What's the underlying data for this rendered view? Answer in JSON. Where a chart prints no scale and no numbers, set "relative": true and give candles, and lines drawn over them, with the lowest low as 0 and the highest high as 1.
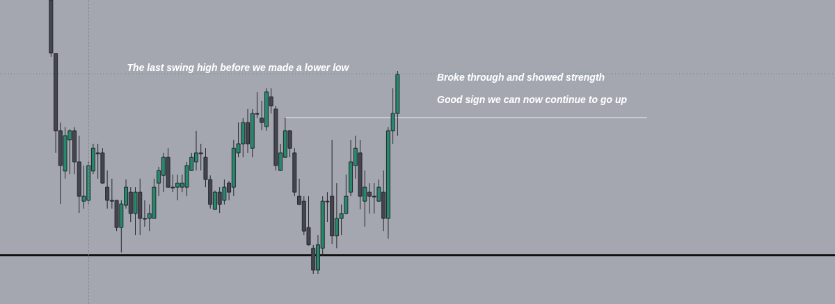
{
  "chart_data": {
    "type": "candlestick",
    "relative": true,
    "categories": [
      null,
      null,
      null,
      null,
      null,
      null,
      null,
      null,
      null,
      null,
      null,
      null,
      null,
      null,
      null,
      null,
      null,
      null,
      null,
      null,
      null,
      null,
      null,
      null,
      null,
      null,
      null,
      null,
      null,
      null,
      null,
      null,
      null,
      null,
      null,
      null,
      null,
      null,
      null,
      null,
      null,
      null,
      null,
      null,
      null,
      null,
      null,
      null,
      null,
      null,
      null,
      null,
      null,
      null,
      null,
      null,
      null,
      null,
      null,
      null,
      null,
      null,
      null,
      null,
      null,
      null,
      null,
      null,
      null,
      null,
      null,
      null,
      null,
      null,
      null
    ],
    "ohlc": [
      [
        1,
        1,
        0.792,
        0.807
      ],
      [
        0.805,
        0.805,
        0.442,
        0.523
      ],
      [
        0.523,
        0.553,
        0.256,
        0.396
      ],
      [
        0.376,
        0.536,
        0.348,
        0.505
      ],
      [
        0.49,
        0.528,
        0.365,
        0.523
      ],
      [
        0.523,
        0.536,
        0.365,
        0.409
      ],
      [
        0.409,
        0.505,
        0.223,
        0.284
      ],
      [
        0.266,
        0.396,
        0.239,
        0.284
      ],
      [
        0.269,
        0.409,
        0.256,
        0.396
      ],
      [
        0.376,
        0.475,
        0.365,
        0.459
      ],
      [
        0.442,
        0.475,
        0.348,
        0.439
      ],
      [
        0.442,
        0.459,
        0.33,
        0.332
      ],
      [
        0.317,
        0.378,
        0.239,
        0.269
      ],
      [
        0.269,
        0.348,
        0.239,
        0.266
      ],
      [
        0.269,
        0.269,
        0.157,
        0.17
      ],
      [
        0.17,
        0.269,
        0.079,
        0.256
      ],
      [
        0.251,
        0.345,
        0.239,
        0.317
      ],
      [
        0.299,
        0.317,
        0.19,
        0.221
      ],
      [
        0.221,
        0.317,
        0.142,
        0.299
      ],
      [
        0.299,
        0.348,
        0.142,
        0.203
      ],
      [
        0.203,
        0.269,
        0.173,
        0.201
      ],
      [
        0.203,
        0.254,
        0.157,
        0.221
      ],
      [
        0.203,
        0.348,
        0.203,
        0.317
      ],
      [
        0.332,
        0.391,
        0.284,
        0.378
      ],
      [
        0.36,
        0.442,
        0.299,
        0.426
      ],
      [
        0.426,
        0.459,
        0.315,
        0.317
      ],
      [
        0.317,
        0.363,
        0.299,
        0.315
      ],
      [
        0.317,
        0.363,
        0.269,
        0.332
      ],
      [
        0.317,
        0.363,
        0.299,
        0.332
      ],
      [
        0.317,
        0.409,
        0.284,
        0.396
      ],
      [
        0.378,
        0.442,
        0.376,
        0.426
      ],
      [
        0.409,
        0.523,
        0.378,
        0.442
      ],
      [
        0.442,
        0.475,
        0.378,
        0.439
      ],
      [
        0.426,
        0.459,
        0.317,
        0.345
      ],
      [
        0.345,
        0.36,
        0.239,
        0.254
      ],
      [
        0.236,
        0.305,
        0.234,
        0.299
      ],
      [
        0.299,
        0.317,
        0.223,
        0.254
      ],
      [
        0.269,
        0.345,
        0.254,
        0.317
      ],
      [
        0.332,
        0.34,
        0.269,
        0.299
      ],
      [
        0.317,
        0.49,
        0.284,
        0.459
      ],
      [
        0.442,
        0.553,
        0.426,
        0.475
      ],
      [
        0.475,
        0.569,
        0.426,
        0.553
      ],
      [
        0.553,
        0.602,
        0.442,
        0.475
      ],
      [
        0.459,
        0.602,
        0.426,
        0.586
      ],
      [
        0.586,
        0.665,
        0.569,
        0.584
      ],
      [
        0.569,
        0.632,
        0.525,
        0.553
      ],
      [
        0.538,
        0.678,
        0.523,
        0.665
      ],
      [
        0.647,
        0.678,
        0.586,
        0.614
      ],
      [
        0.602,
        0.614,
        0.378,
        0.396
      ],
      [
        0.378,
        0.475,
        0.376,
        0.442
      ],
      [
        0.426,
        0.571,
        0.424,
        0.523
      ],
      [
        0.523,
        0.525,
        0.426,
        0.459
      ],
      [
        0.442,
        0.459,
        0.284,
        0.299
      ],
      [
        0.284,
        0.348,
        0.251,
        0.254
      ],
      [
        0.266,
        0.284,
        0.142,
        0.157
      ],
      [
        0.17,
        0.284,
        0.104,
        0.107
      ],
      [
        0.094,
        0.107,
        0,
        0.015
      ],
      [
        0.015,
        0.142,
        0,
        0.107
      ],
      [
        0.094,
        0.284,
        0.066,
        0.266
      ],
      [
        0.266,
        0.299,
        0.19,
        0.264
      ],
      [
        0.284,
        0.49,
        0.109,
        0.14
      ],
      [
        0.14,
        0.332,
        0.094,
        0.203
      ],
      [
        0.203,
        0.254,
        0.142,
        0.221
      ],
      [
        0.221,
        0.363,
        0.218,
        0.284
      ],
      [
        0.299,
        0.49,
        0.284,
        0.409
      ],
      [
        0.396,
        0.505,
        0.348,
        0.459
      ],
      [
        0.442,
        0.49,
        0.236,
        0.284
      ],
      [
        0.266,
        0.378,
        0.173,
        0.317
      ],
      [
        0.299,
        0.332,
        0.221,
        0.284
      ],
      [
        0.284,
        0.332,
        0.221,
        0.282
      ],
      [
        0.266,
        0.345,
        0.264,
        0.317
      ],
      [
        0.299,
        0.378,
        0.157,
        0.203
      ],
      [
        0.203,
        0.536,
        0.129,
        0.523
      ],
      [
        0.523,
        0.678,
        0.475,
        0.586
      ],
      [
        0.586,
        0.741,
        0.505,
        0.728
      ]
    ],
    "ref_lines": [
      {
        "axis": "y",
        "value": 0.069,
        "color": "#111111",
        "line_style": "solid"
      },
      {
        "axis": "y",
        "value": 0.731,
        "color": "#4f8f8a",
        "line_style": "dotted"
      },
      {
        "axis": "y",
        "value": 0.571,
        "color": "#f2f2f2",
        "line_style": "solid"
      }
    ],
    "annotations": [
      "The last swing high before we made a lower low",
      "Broke through and showed strength",
      "Good sign we can now continue to go up"
    ],
    "line_style": "solid"
  }
}
